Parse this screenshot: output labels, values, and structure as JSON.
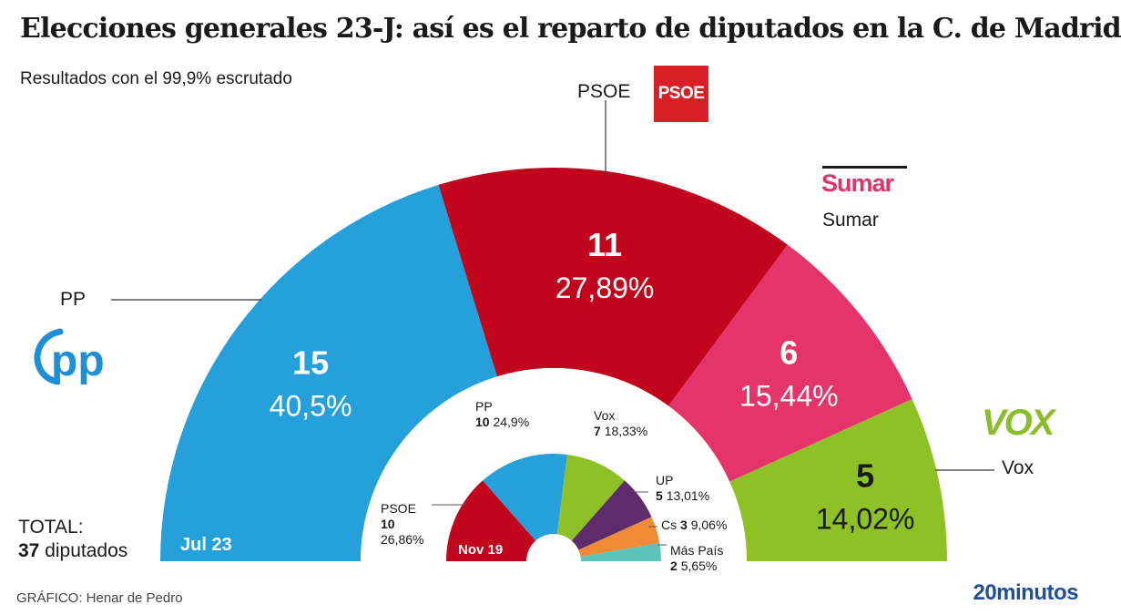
{
  "title": "Elecciones generales 23-J: así es el reparto de diputados en la C. de Madrid",
  "subtitle": "Resultados con el 99,9% escrutado",
  "total": {
    "label": "TOTAL:",
    "seats": "37",
    "unit": "diputados"
  },
  "credit": "GRÁFICO: Henar de Pedro",
  "brand": "20minutos",
  "logos": {
    "psoe": "PSOE",
    "sumar": "Sumar",
    "vox": "VOX",
    "pp": "pp"
  },
  "colors": {
    "PP": "#26a0db",
    "PSOE": "#c0051c",
    "Sumar": "#e5336c",
    "Vox": "#8dc125",
    "UP": "#5e2c6b",
    "Cs": "#f08a34",
    "MasPais": "#5cc4ba"
  },
  "chart_data": [
    {
      "type": "pie",
      "label": "Jul 23",
      "series": [
        {
          "name": "PP",
          "seats": 15,
          "pct": "40,5%",
          "color": "#26a0db"
        },
        {
          "name": "PSOE",
          "seats": 11,
          "pct": "27,89%",
          "color": "#c0051c"
        },
        {
          "name": "Sumar",
          "seats": 6,
          "pct": "15,44%",
          "color": "#e5336c"
        },
        {
          "name": "Vox",
          "seats": 5,
          "pct": "14,02%",
          "color": "#8dc125"
        }
      ]
    },
    {
      "type": "pie",
      "label": "Nov 19",
      "series": [
        {
          "name": "PSOE",
          "seats": 10,
          "pct": "26,86%",
          "color": "#c0051c"
        },
        {
          "name": "PP",
          "seats": 10,
          "pct": "24,9%",
          "color": "#26a0db"
        },
        {
          "name": "Vox",
          "seats": 7,
          "pct": "18,33%",
          "color": "#8dc125"
        },
        {
          "name": "UP",
          "seats": 5,
          "pct": "13,01%",
          "color": "#5e2c6b"
        },
        {
          "name": "Cs",
          "seats": 3,
          "pct": "9,06%",
          "color": "#f08a34"
        },
        {
          "name": "Más País",
          "seats": 2,
          "pct": "5,65%",
          "color": "#5cc4ba"
        }
      ]
    }
  ]
}
